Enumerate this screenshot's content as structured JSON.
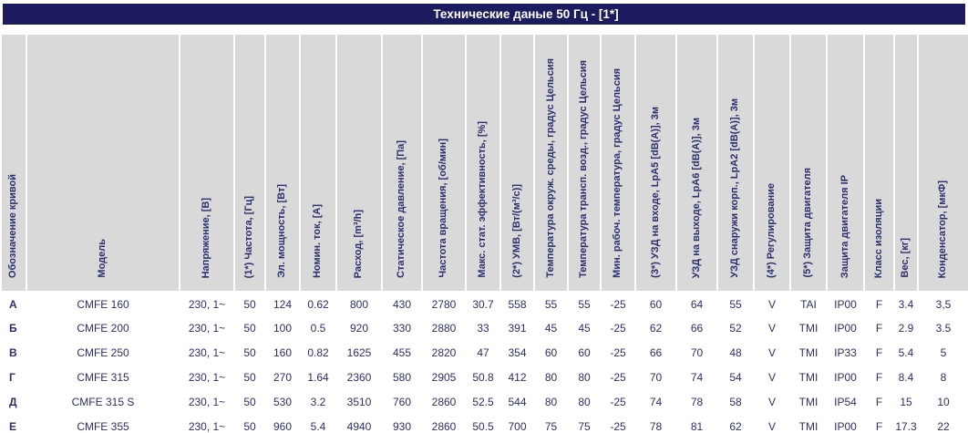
{
  "title": "Технические даные 50 Гц - [1*]",
  "colors": {
    "title_bar_bg": "#1b1b5e",
    "title_text": "#ffffff",
    "header_cell_bg": "#d9d9d9",
    "table_text": "#2b2f6e",
    "row_bg": "#ffffff"
  },
  "table": {
    "columns": [
      {
        "id": "curve",
        "label": "Обозначение кривой"
      },
      {
        "id": "model",
        "label": "Модель"
      },
      {
        "id": "voltage",
        "label": "Напряжение, [В]"
      },
      {
        "id": "frequency",
        "label": "(1*) Частота, [Гц]"
      },
      {
        "id": "el-power",
        "label": "Эл. мощность, [Вт]"
      },
      {
        "id": "nominal-current",
        "label": "Номин. ток, [А]"
      },
      {
        "id": "airflow",
        "label": "Расход, [m³/h]"
      },
      {
        "id": "static-pressure",
        "label": "Статическое давление, [Па]"
      },
      {
        "id": "rotation-speed",
        "label": "Частота вращения, [об/мин]"
      },
      {
        "id": "max-static-efficiency",
        "label": "Макс. стат. эффективность, [%]"
      },
      {
        "id": "umv",
        "label": "(2*) УМВ, [Вт/(м³/с)]"
      },
      {
        "id": "ambient-temp",
        "label": "Температура окруж. среды, градус Цельсия"
      },
      {
        "id": "transport-air-temp",
        "label": "Температура трансп. возд., градус Цельсия"
      },
      {
        "id": "min-working-temp",
        "label": "Мин. рабоч. температура, градус Цельсия"
      },
      {
        "id": "spl-inlet",
        "label": "(3*) УЗД  на входе, LpA5 [dB(A)],  3м"
      },
      {
        "id": "spl-outlet",
        "label": "УЗД  на выходе, LpA6 [dB(A)],  3м"
      },
      {
        "id": "spl-casing",
        "label": "УЗД  снаружи корп., LpA2 [dB(A)],  3м"
      },
      {
        "id": "regulation",
        "label": "(4*) Регулирование"
      },
      {
        "id": "motor-protection",
        "label": "(5*) Защита двигателя"
      },
      {
        "id": "motor-protection-ip",
        "label": "Защита двигателя IP"
      },
      {
        "id": "insulation-class",
        "label": "Класс изоляции"
      },
      {
        "id": "weight",
        "label": "Вес, [кг]"
      },
      {
        "id": "capacitor",
        "label": "Конденсатор, [мкФ]"
      }
    ],
    "rows": [
      {
        "cells": [
          "А",
          "CMFE 160",
          "230, 1~",
          "50",
          "124",
          "0.62",
          "800",
          "430",
          "2780",
          "30.7",
          "558",
          "55",
          "55",
          "-25",
          "60",
          "64",
          "55",
          "V",
          "TAI",
          "IP00",
          "F",
          "3.4",
          "3,5"
        ]
      },
      {
        "cells": [
          "Б",
          "CMFE 200",
          "230, 1~",
          "50",
          "100",
          "0.5",
          "920",
          "330",
          "2880",
          "33",
          "391",
          "45",
          "45",
          "-25",
          "62",
          "66",
          "52",
          "V",
          "TMI",
          "IP00",
          "F",
          "2.9",
          "3.5"
        ]
      },
      {
        "cells": [
          "В",
          "CMFE 250",
          "230, 1~",
          "50",
          "160",
          "0.82",
          "1625",
          "455",
          "2820",
          "47",
          "354",
          "60",
          "60",
          "-25",
          "66",
          "70",
          "48",
          "V",
          "TMI",
          "IP33",
          "F",
          "5.4",
          "5"
        ]
      },
      {
        "cells": [
          "Г",
          "CMFE 315",
          "230, 1~",
          "50",
          "270",
          "1.64",
          "2360",
          "580",
          "2905",
          "50.8",
          "412",
          "80",
          "80",
          "-25",
          "70",
          "74",
          "54",
          "V",
          "TMI",
          "IP00",
          "F",
          "8.4",
          "8"
        ]
      },
      {
        "cells": [
          "Д",
          "CMFE 315 S",
          "230, 1~",
          "50",
          "530",
          "3.2",
          "3510",
          "760",
          "2860",
          "52.5",
          "544",
          "80",
          "80",
          "-25",
          "74",
          "78",
          "58",
          "V",
          "TMI",
          "IP54",
          "F",
          "15",
          "10"
        ]
      },
      {
        "cells": [
          "Е",
          "CMFE 355",
          "230, 1~",
          "50",
          "960",
          "5.4",
          "4940",
          "930",
          "2860",
          "50.5",
          "700",
          "75",
          "75",
          "-25",
          "78",
          "81",
          "62",
          "V",
          "TMI",
          "IP00",
          "F",
          "17.3",
          "22"
        ]
      }
    ]
  }
}
